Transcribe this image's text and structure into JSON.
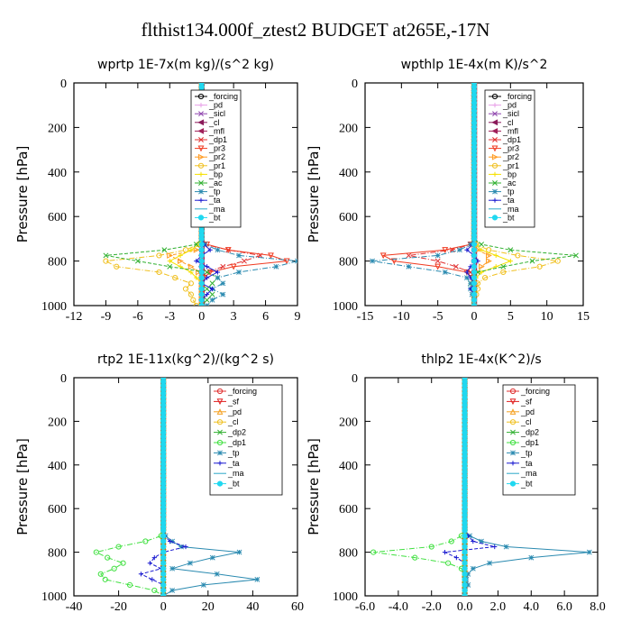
{
  "figure_title": "flthist134.000f_ztest2  BUDGET at265E,-17N",
  "chart_data": [
    {
      "type": "line",
      "title": "wprtp   1E-7x(m kg)/(s^2 kg)",
      "ylabel": "Pressure [hPa]",
      "xlim": [
        -12,
        9
      ],
      "ylim": [
        1000,
        0
      ],
      "xticks": [
        "-12",
        "-9",
        "-6",
        "-3",
        "0",
        "3",
        "6",
        "9"
      ],
      "yticks": [
        "0",
        "200",
        "400",
        "600",
        "800",
        "1000"
      ],
      "y": [
        700,
        725,
        750,
        775,
        800,
        825,
        850,
        875,
        900,
        925,
        950,
        975,
        1000
      ],
      "series": [
        {
          "name": "_forcing",
          "color": "#000000",
          "marker": "o",
          "values": [
            0,
            0,
            0,
            0,
            0,
            0,
            0,
            0,
            0,
            0,
            0,
            0,
            0
          ]
        },
        {
          "name": "_pd",
          "color": "#e8a0e8",
          "marker": "+",
          "values": [
            0,
            0,
            0,
            0,
            0,
            0,
            0,
            0,
            0,
            0,
            0,
            0,
            0
          ]
        },
        {
          "name": "_sicl",
          "color": "#8e44ad",
          "marker": "x",
          "values": [
            0,
            0,
            0,
            0,
            0,
            0,
            0,
            0,
            0,
            0,
            0,
            0,
            0
          ]
        },
        {
          "name": "_cl",
          "color": "#8b1a5a",
          "marker": "<",
          "values": [
            0,
            0,
            0,
            0,
            0,
            0,
            0,
            0,
            0,
            0,
            0,
            0,
            0
          ]
        },
        {
          "name": "_mfl",
          "color": "#a0205a",
          "marker": "<",
          "values": [
            0,
            0,
            0,
            0,
            0,
            0,
            0,
            0,
            0,
            0,
            0,
            0,
            0
          ]
        },
        {
          "name": "_dp1",
          "color": "#e03030",
          "marker": "x",
          "values": [
            0,
            0.3,
            2.5,
            5.5,
            4,
            2,
            0.5,
            0,
            0,
            0,
            0,
            0,
            0
          ]
        },
        {
          "name": "_pr3",
          "color": "#f03a20",
          "marker": "v",
          "values": [
            0,
            0.5,
            2.5,
            6.5,
            8,
            3,
            0.8,
            0.2,
            0,
            0,
            0,
            0,
            0
          ]
        },
        {
          "name": "_pr2",
          "color": "#ff9a20",
          "marker": ">",
          "values": [
            0,
            0,
            -0.5,
            -3,
            -2,
            -1,
            -0.3,
            0,
            0,
            0,
            0,
            0,
            0
          ]
        },
        {
          "name": "_pr1",
          "color": "#f0c020",
          "marker": "o",
          "values": [
            0,
            -0.3,
            -1.5,
            -4,
            -9,
            -8,
            -4,
            -2.5,
            -1,
            -1.5,
            -1,
            -0.8,
            -0.5
          ]
        },
        {
          "name": "_bp",
          "color": "#f5e000",
          "marker": "+",
          "values": [
            0,
            -0.2,
            -1,
            -2,
            -3,
            -2,
            -1,
            -0.5,
            0,
            0,
            0,
            0,
            0
          ]
        },
        {
          "name": "_ac",
          "color": "#30b030",
          "marker": "x",
          "values": [
            0,
            -0.5,
            -3.5,
            -9,
            -6,
            -3,
            0.5,
            1.5,
            1,
            0.5,
            1,
            0.5,
            0
          ]
        },
        {
          "name": "_tp",
          "color": "#2a8ab0",
          "marker": "*",
          "values": [
            0,
            0.3,
            1.5,
            3.5,
            9,
            7,
            3.5,
            1.5,
            2,
            1,
            2,
            1,
            0.5
          ]
        },
        {
          "name": "_ta",
          "color": "#1a1ad0",
          "marker": "+",
          "values": [
            0,
            0.2,
            0.8,
            0,
            -0.5,
            0.5,
            1.5,
            0.5,
            0,
            1,
            0.5,
            0,
            0
          ]
        },
        {
          "name": "_ma",
          "color": "#2aa8c8",
          "marker": "-",
          "values": [
            0,
            0,
            0,
            0,
            0,
            0,
            0,
            0,
            0,
            0,
            0,
            0,
            0
          ]
        },
        {
          "name": "_bt",
          "color": "#20d8f0",
          "marker": "h",
          "values": [
            0,
            0,
            0,
            0,
            0,
            0,
            0,
            0,
            0,
            0,
            0,
            0,
            0
          ]
        }
      ]
    },
    {
      "type": "line",
      "title": "wpthlp   1E-4x(m K)/s^2",
      "ylabel": "Pressure [hPa]",
      "xlim": [
        -15,
        15
      ],
      "ylim": [
        1000,
        0
      ],
      "xticks": [
        "-15",
        "-10",
        "-5",
        "0",
        "5",
        "10",
        "15"
      ],
      "yticks": [
        "0",
        "200",
        "400",
        "600",
        "800",
        "1000"
      ],
      "y": [
        700,
        725,
        750,
        775,
        800,
        825,
        850,
        875,
        900,
        925,
        950,
        975,
        1000
      ],
      "series": [
        {
          "name": "_forcing",
          "color": "#000000",
          "marker": "o",
          "values": [
            0,
            0,
            0,
            0,
            0,
            0,
            0,
            0,
            0,
            0,
            0,
            0,
            0
          ]
        },
        {
          "name": "_pd",
          "color": "#e8a0e8",
          "marker": "+",
          "values": [
            0,
            0,
            0,
            0,
            0,
            0,
            0,
            0,
            0,
            0,
            0,
            0,
            0
          ]
        },
        {
          "name": "_sicl",
          "color": "#8e44ad",
          "marker": "x",
          "values": [
            0,
            0,
            0,
            0,
            0,
            0,
            0,
            0,
            0,
            0,
            0,
            0,
            0
          ]
        },
        {
          "name": "_cl",
          "color": "#8b1a5a",
          "marker": "<",
          "values": [
            0,
            0,
            0,
            0,
            0,
            0,
            0,
            0,
            0,
            0,
            0,
            0,
            0
          ]
        },
        {
          "name": "_mfl",
          "color": "#a0205a",
          "marker": "<",
          "values": [
            0,
            0,
            0,
            0,
            0,
            0,
            0,
            0,
            0,
            0,
            0,
            0,
            0
          ]
        },
        {
          "name": "_dp1",
          "color": "#e03030",
          "marker": "x",
          "values": [
            0,
            -0.5,
            -3,
            -9,
            -5,
            -2.5,
            -0.5,
            0,
            0,
            0,
            0,
            0,
            0
          ]
        },
        {
          "name": "_pr3",
          "color": "#f03a20",
          "marker": "v",
          "values": [
            0,
            -0.5,
            -4,
            -12.5,
            -11,
            -5,
            -1,
            -0.3,
            0,
            0,
            0,
            0,
            0
          ]
        },
        {
          "name": "_pr2",
          "color": "#ff9a20",
          "marker": ">",
          "values": [
            0,
            0,
            0.5,
            2,
            2,
            1,
            0.3,
            0,
            0,
            0,
            0,
            0,
            0
          ]
        },
        {
          "name": "_pr1",
          "color": "#f0c020",
          "marker": "o",
          "values": [
            0,
            0.3,
            2,
            6,
            11.5,
            9,
            4,
            1.5,
            0.5,
            0.5,
            0.3,
            0,
            0
          ]
        },
        {
          "name": "_bp",
          "color": "#f5e000",
          "marker": "+",
          "values": [
            0,
            0.2,
            1,
            3,
            5,
            3,
            1,
            0.3,
            0,
            0,
            0,
            0,
            0
          ]
        },
        {
          "name": "_ac",
          "color": "#30b030",
          "marker": "x",
          "values": [
            0,
            1,
            5,
            14,
            8,
            4,
            0.5,
            0,
            -0.5,
            0,
            0,
            0,
            0
          ]
        },
        {
          "name": "_tp",
          "color": "#2a8ab0",
          "marker": "*",
          "values": [
            0,
            -0.5,
            -2,
            -5,
            -14,
            -9,
            -4,
            -1,
            -0.5,
            -0.5,
            -0.3,
            0,
            0
          ]
        },
        {
          "name": "_ta",
          "color": "#1a1ad0",
          "marker": "+",
          "values": [
            0,
            -0.2,
            -1,
            0,
            0.5,
            -0.5,
            -1,
            -0.5,
            0,
            -0.5,
            0,
            0,
            0
          ]
        },
        {
          "name": "_ma",
          "color": "#2aa8c8",
          "marker": "-",
          "values": [
            0,
            0,
            0,
            0,
            0,
            0,
            0,
            0,
            0,
            0,
            0,
            0,
            0
          ]
        },
        {
          "name": "_bt",
          "color": "#20d8f0",
          "marker": "h",
          "values": [
            0,
            0,
            0,
            0,
            0,
            0,
            0,
            0,
            0,
            0,
            0,
            0,
            0
          ]
        }
      ]
    },
    {
      "type": "line",
      "title": "rtp2   1E-11x(kg^2)/(kg^2 s)",
      "ylabel": "Pressure [hPa]",
      "xlim": [
        -40,
        60
      ],
      "ylim": [
        1000,
        0
      ],
      "xticks": [
        "-40",
        "-20",
        "0",
        "20",
        "40",
        "60"
      ],
      "yticks": [
        "0",
        "200",
        "400",
        "600",
        "800",
        "1000"
      ],
      "y": [
        700,
        725,
        750,
        775,
        800,
        825,
        850,
        875,
        900,
        925,
        950,
        975,
        1000
      ],
      "series": [
        {
          "name": "_forcing",
          "color": "#e03030",
          "marker": "o",
          "values": [
            0,
            0,
            0,
            0,
            0,
            0,
            0,
            0,
            0,
            0,
            0,
            0,
            0
          ]
        },
        {
          "name": "_sf",
          "color": "#e02020",
          "marker": "v",
          "values": [
            0,
            0,
            0,
            0,
            0,
            0,
            0,
            0,
            0,
            0,
            0,
            0,
            0
          ]
        },
        {
          "name": "_pd",
          "color": "#f5a020",
          "marker": "^",
          "values": [
            0,
            0,
            0,
            0,
            0,
            0,
            0,
            0,
            0,
            0,
            0,
            0,
            0
          ]
        },
        {
          "name": "_cl",
          "color": "#f0c020",
          "marker": "o",
          "values": [
            0,
            0,
            0,
            0,
            0,
            0,
            0,
            0,
            0,
            0,
            0,
            0,
            0
          ]
        },
        {
          "name": "_dp2",
          "color": "#30b030",
          "marker": "x",
          "values": [
            0,
            0,
            0,
            0,
            0,
            0,
            0,
            0,
            0,
            0,
            0,
            0,
            0
          ]
        },
        {
          "name": "_dp1",
          "color": "#40e040",
          "marker": "o",
          "values": [
            0,
            -1,
            -8,
            -20,
            -30,
            -25,
            -18,
            -22,
            -28,
            -26,
            -15,
            -4,
            0
          ]
        },
        {
          "name": "_tp",
          "color": "#2a8ab0",
          "marker": "*",
          "values": [
            0,
            1,
            4,
            8,
            34,
            22,
            12,
            4,
            24,
            42,
            18,
            4,
            0
          ]
        },
        {
          "name": "_ta",
          "color": "#1a1ad0",
          "marker": "+",
          "values": [
            0,
            0.5,
            3,
            10,
            0,
            -4,
            -6,
            -1,
            -10,
            -5,
            0,
            0,
            0
          ]
        },
        {
          "name": "_ma",
          "color": "#2aa8c8",
          "marker": "-",
          "values": [
            0,
            0,
            0,
            0,
            0,
            0,
            0,
            0,
            0,
            0,
            0,
            0,
            0
          ]
        },
        {
          "name": "_bt",
          "color": "#20d8f0",
          "marker": "h",
          "values": [
            0,
            0,
            0,
            0,
            0,
            0,
            0,
            0,
            0,
            0,
            0,
            0,
            0
          ]
        }
      ]
    },
    {
      "type": "line",
      "title": "thlp2   1E-4x(K^2)/s",
      "ylabel": "Pressure [hPa]",
      "xlim": [
        -6,
        8
      ],
      "ylim": [
        1000,
        0
      ],
      "xticks": [
        "-6.0",
        "-4.0",
        "-2.0",
        "0.0",
        "2.0",
        "4.0",
        "6.0",
        "8.0"
      ],
      "yticks": [
        "0",
        "200",
        "400",
        "600",
        "800",
        "1000"
      ],
      "y": [
        700,
        725,
        750,
        775,
        800,
        825,
        850,
        875,
        900,
        925,
        950,
        975,
        1000
      ],
      "series": [
        {
          "name": "_forcing",
          "color": "#e03030",
          "marker": "o",
          "values": [
            0,
            0,
            0,
            0,
            0,
            0,
            0,
            0,
            0,
            0,
            0,
            0,
            0
          ]
        },
        {
          "name": "_sf",
          "color": "#e02020",
          "marker": "v",
          "values": [
            0,
            0,
            0,
            0,
            0,
            0,
            0,
            0,
            0,
            0,
            0,
            0,
            0
          ]
        },
        {
          "name": "_pd",
          "color": "#f5a020",
          "marker": "^",
          "values": [
            0,
            0,
            0,
            0,
            0,
            0,
            0,
            0,
            0,
            0,
            0,
            0,
            0
          ]
        },
        {
          "name": "_cl",
          "color": "#f0c020",
          "marker": "o",
          "values": [
            0,
            0,
            0,
            0,
            0,
            0,
            0,
            0,
            0,
            0,
            0,
            0,
            0
          ]
        },
        {
          "name": "_dp2",
          "color": "#30b030",
          "marker": "x",
          "values": [
            0,
            0,
            0,
            0,
            0,
            0,
            0,
            0,
            0,
            0,
            0,
            0,
            0
          ]
        },
        {
          "name": "_dp1",
          "color": "#40e040",
          "marker": "o",
          "values": [
            0,
            -0.2,
            -0.8,
            -2,
            -5.5,
            -3,
            -1,
            -0.2,
            0,
            0,
            0,
            0,
            0
          ]
        },
        {
          "name": "_tp",
          "color": "#2a8ab0",
          "marker": "*",
          "values": [
            0,
            0.3,
            1,
            2.5,
            7.5,
            4,
            1.5,
            0.5,
            0.2,
            0.1,
            0.2,
            0,
            0
          ]
        },
        {
          "name": "_ta",
          "color": "#1a1ad0",
          "marker": "+",
          "values": [
            0,
            0.2,
            0.5,
            1.8,
            -1.2,
            -0.5,
            0,
            0,
            0,
            0,
            0,
            0,
            0
          ]
        },
        {
          "name": "_ma",
          "color": "#2aa8c8",
          "marker": "-",
          "values": [
            0,
            0,
            0,
            0,
            0,
            0,
            0,
            0,
            0,
            0,
            0,
            0,
            0
          ]
        },
        {
          "name": "_bt",
          "color": "#20d8f0",
          "marker": "h",
          "values": [
            0,
            0,
            0,
            0,
            0,
            0,
            0,
            0,
            0,
            0,
            0,
            0,
            0
          ]
        }
      ]
    }
  ]
}
